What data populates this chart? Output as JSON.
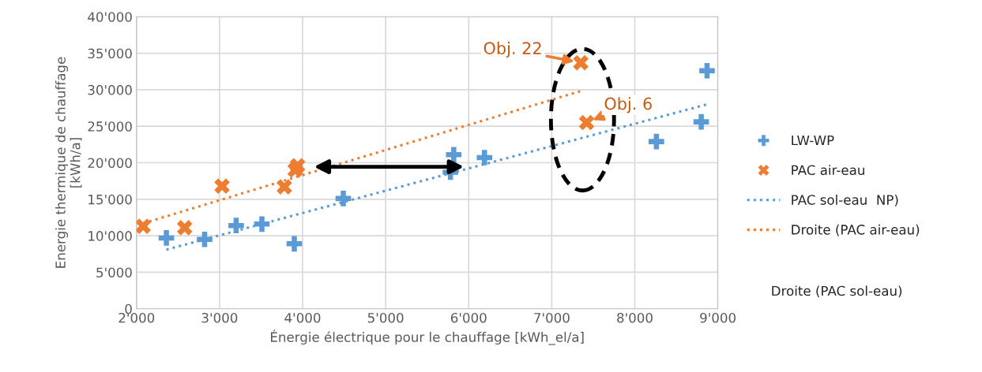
{
  "chart_data": {
    "type": "scatter",
    "xlabel": "Énergie électrique pour le chauffage [kWh_el/a]",
    "ylabel": "Energie thermique de chauffage\n[kWh/a]",
    "xlim": [
      2000,
      9000
    ],
    "xticks": [
      {
        "value": 2000,
        "label": "2'000"
      },
      {
        "value": 3000,
        "label": "3'000"
      },
      {
        "value": 4000,
        "label": "4'000"
      },
      {
        "value": 5000,
        "label": "5'000"
      },
      {
        "value": 6000,
        "label": "6'000"
      },
      {
        "value": 7000,
        "label": "7'000"
      },
      {
        "value": 8000,
        "label": "8'000"
      },
      {
        "value": 9000,
        "label": "9'000"
      }
    ],
    "ylim": [
      0,
      40000
    ],
    "yticks": [
      0,
      {
        "value": 5000,
        "label": "5'000"
      },
      {
        "value": 10000,
        "label": "10'000"
      },
      {
        "value": 15000,
        "label": "15'000"
      },
      {
        "value": 20000,
        "label": "20'000"
      },
      {
        "value": 25000,
        "label": "25'000"
      },
      {
        "value": 30000,
        "label": "30'000"
      },
      {
        "value": 35000,
        "label": "35'000"
      },
      {
        "value": 40000,
        "label": "40'000"
      }
    ],
    "grid": true,
    "legend": "right",
    "series": [
      {
        "name": "LW-WP",
        "marker": "plus",
        "color": "#5b9bd5",
        "x": [
          2360,
          2820,
          3200,
          3510,
          3900,
          4490,
          5820,
          5780,
          6190,
          8260,
          8800,
          8870
        ],
        "values": [
          9700,
          9500,
          11400,
          11600,
          8900,
          15100,
          21100,
          18700,
          20700,
          22900,
          25600,
          32600
        ]
      },
      {
        "name": "PAC air-eau",
        "marker": "cross",
        "color": "#ed7d31",
        "x": [
          2080,
          2580,
          3030,
          3780,
          3940,
          3910,
          7350,
          7420
        ],
        "values": [
          11300,
          11100,
          16800,
          16700,
          19600,
          19000,
          33700,
          25500
        ]
      },
      {
        "name": "PAC sol-eau  NP)",
        "type": "line",
        "marker": "none",
        "line_style": "dotted",
        "color": "#5b9bd5",
        "x": [
          2360,
          8870
        ],
        "values": [
          8100,
          28000
        ]
      },
      {
        "name": "Droite (PAC air-eau)",
        "type": "line",
        "marker": "none",
        "line_style": "dotted",
        "color": "#ed7d31",
        "x": [
          2080,
          7370
        ],
        "values": [
          11700,
          29900
        ]
      }
    ],
    "annotations": [
      {
        "text": "Obj. 22",
        "x": 7350,
        "y": 33700
      },
      {
        "text": "Obj. 6",
        "x": 7420,
        "y": 25500
      },
      "Droite (PAC sol-eau)"
    ]
  }
}
